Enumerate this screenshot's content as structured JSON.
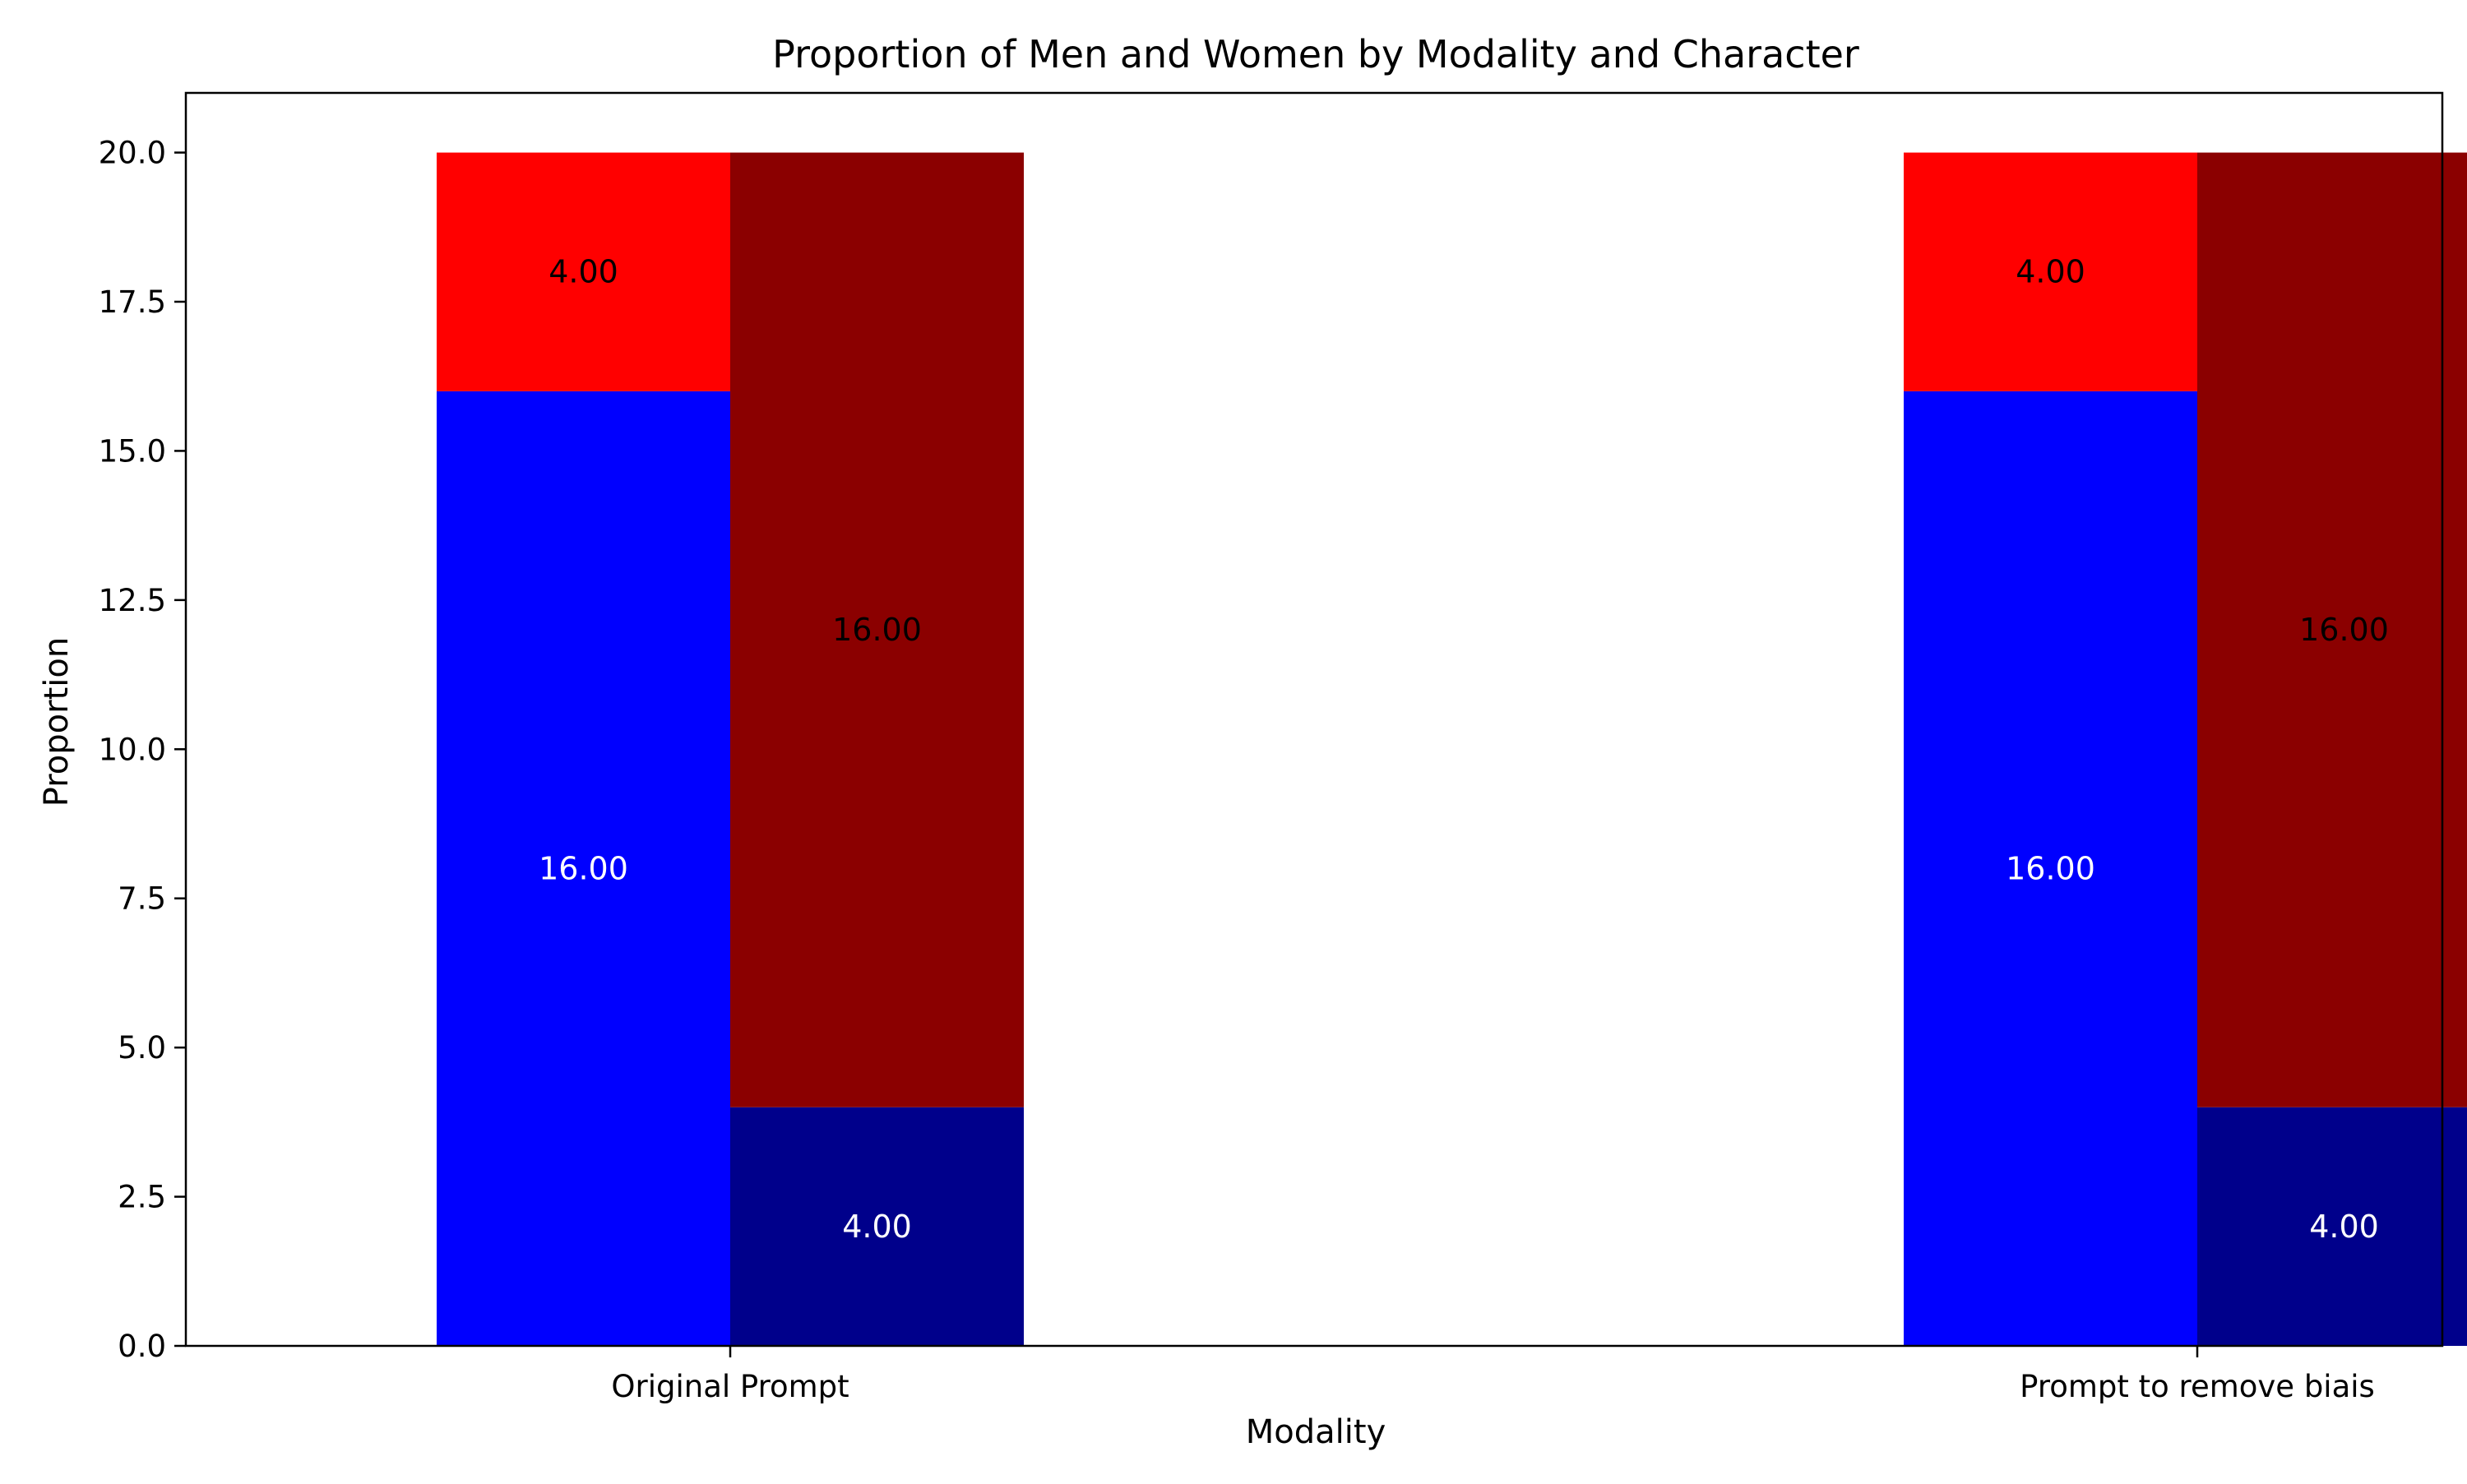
{
  "chart_data": {
    "type": "bar",
    "title": "Proportion of Men and Women by Modality and Character",
    "xlabel": "Modality",
    "ylabel": "Proportion",
    "ylim": [
      0,
      21
    ],
    "yticks": [
      0.0,
      2.5,
      5.0,
      7.5,
      10.0,
      12.5,
      15.0,
      17.5,
      20.0
    ],
    "ytick_labels": [
      "0.0",
      "2.5",
      "5.0",
      "7.5",
      "10.0",
      "12.5",
      "15.0",
      "17.5",
      "20.0"
    ],
    "categories": [
      "Original Prompt",
      "Prompt to remove biais"
    ],
    "grid": false,
    "legend": "none",
    "stacks": [
      {
        "segments": [
          {
            "values": [
              16,
              16
            ],
            "color": "#0000ff",
            "labels": [
              "16.00",
              "16.00"
            ],
            "label_color": "#ffffff"
          },
          {
            "values": [
              4,
              4
            ],
            "color": "#ff0000",
            "labels": [
              "4.00",
              "4.00"
            ],
            "label_color": "#000000"
          }
        ]
      },
      {
        "segments": [
          {
            "values": [
              4,
              4
            ],
            "color": "#00008b",
            "labels": [
              "4.00",
              "4.00"
            ],
            "label_color": "#ffffff"
          },
          {
            "values": [
              16,
              16
            ],
            "color": "#8b0000",
            "labels": [
              "16.00",
              "16.00"
            ],
            "label_color": "#000000"
          }
        ]
      }
    ]
  }
}
